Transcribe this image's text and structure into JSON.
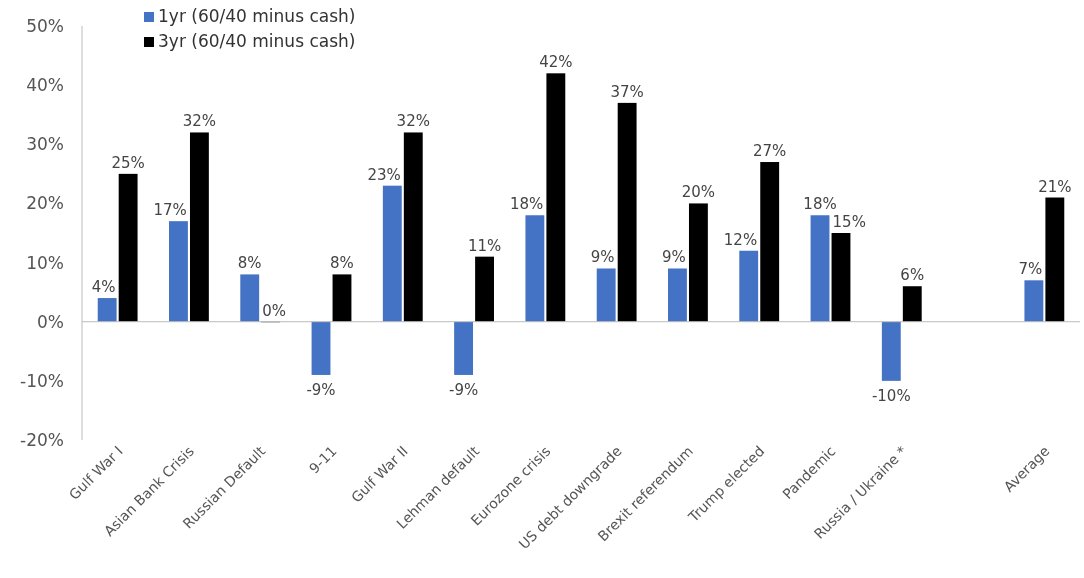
{
  "chart_data": {
    "type": "bar",
    "categories": [
      "Gulf War I",
      "Asian Bank Crisis",
      "Russian Default",
      "9-11",
      "Gulf War II",
      "Lehman default",
      "Eurozone crisis",
      "US debt downgrade",
      "Brexit referendum",
      "Trump elected",
      "Pandemic",
      "Russia / Ukraine *",
      null,
      "Average"
    ],
    "series": [
      {
        "name": "1yr (60/40 minus cash)",
        "color": "#4472c4",
        "values": [
          4,
          17,
          8,
          -9,
          23,
          -9,
          18,
          9,
          9,
          12,
          18,
          -10,
          null,
          7
        ],
        "value_labels": [
          "4%",
          "17%",
          "8%",
          "-9%",
          "23%",
          "-9%",
          "18%",
          "9%",
          "9%",
          "12%",
          "18%",
          "-10%",
          null,
          "7%"
        ]
      },
      {
        "name": "3yr (60/40 minus cash)",
        "color": "#000000",
        "values": [
          25,
          32,
          0,
          8,
          32,
          11,
          42,
          37,
          20,
          27,
          15,
          6,
          null,
          21
        ],
        "value_labels": [
          "25%",
          "32%",
          "0%",
          "8%",
          "32%",
          "11%",
          "42%",
          "37%",
          "20%",
          "27%",
          "15%",
          "6%",
          null,
          "21%"
        ]
      }
    ],
    "ylim": [
      -20,
      50
    ],
    "yticks": [
      {
        "value": -20,
        "label": "-20%"
      },
      {
        "value": -10,
        "label": "-10%"
      },
      {
        "value": 0,
        "label": "0%"
      },
      {
        "value": 10,
        "label": "10%"
      },
      {
        "value": 20,
        "label": "20%"
      },
      {
        "value": 30,
        "label": "30%"
      },
      {
        "value": 40,
        "label": "40%"
      },
      {
        "value": 50,
        "label": "50%"
      }
    ],
    "legend": "top left"
  }
}
